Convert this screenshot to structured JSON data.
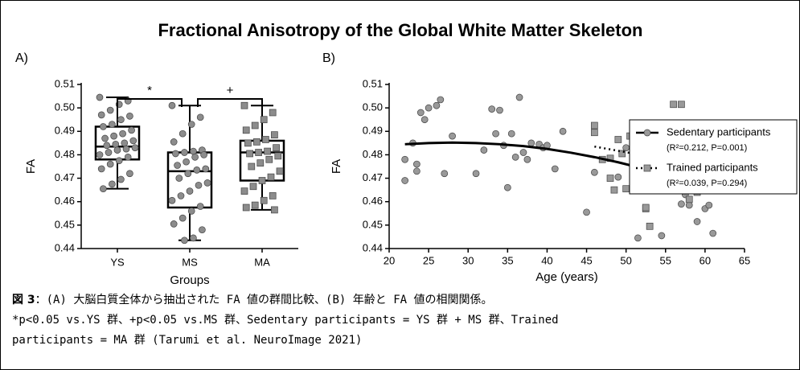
{
  "title": "Fractional Anisotropy of the Global White Matter Skeleton",
  "chart_data": [
    {
      "type": "box",
      "panel": "A)",
      "x_label": "Groups",
      "y_label": "FA",
      "categories": [
        "YS",
        "MS",
        "MA"
      ],
      "ylim": [
        0.44,
        0.51
      ],
      "yticks": [
        0.44,
        0.45,
        0.46,
        0.47,
        0.48,
        0.49,
        {
          "value": 0.5,
          "label": "0.50"
        },
        0.51
      ],
      "annotations": [
        "*",
        "+"
      ],
      "point_color": "#8c8c8c",
      "boxes": [
        {
          "min": 0.4655,
          "q1": 0.478,
          "median": 0.4835,
          "q3": 0.492,
          "max": 0.5045
        },
        {
          "min": 0.4435,
          "q1": 0.4575,
          "median": 0.473,
          "q3": 0.481,
          "max": 0.501
        },
        {
          "min": 0.4565,
          "q1": 0.469,
          "median": 0.481,
          "q3": 0.486,
          "max": 0.501
        }
      ],
      "points": [
        [
          0.5045,
          0.503,
          0.5015,
          0.499,
          0.497,
          0.4965,
          0.495,
          0.493,
          0.492,
          0.4905,
          0.489,
          0.488,
          0.487,
          0.486,
          0.485,
          0.4845,
          0.484,
          0.483,
          0.4825,
          0.482,
          0.481,
          0.48,
          0.479,
          0.4775,
          0.476,
          0.474,
          0.472,
          0.4695,
          0.4675,
          0.4655
        ],
        [
          0.501,
          0.496,
          0.493,
          0.489,
          0.4855,
          0.482,
          0.4815,
          0.481,
          0.4805,
          0.48,
          0.479,
          0.477,
          0.4755,
          0.474,
          0.4735,
          0.472,
          0.47,
          0.468,
          0.467,
          0.4645,
          0.4625,
          0.4605,
          0.458,
          0.456,
          0.453,
          0.4505,
          0.448,
          0.4445,
          0.4435
        ],
        [
          0.501,
          0.498,
          0.495,
          0.4925,
          0.4905,
          0.4885,
          0.4865,
          0.4855,
          0.485,
          0.483,
          0.4815,
          0.481,
          0.4805,
          0.4795,
          0.478,
          0.4765,
          0.475,
          0.473,
          0.4705,
          0.469,
          0.4665,
          0.4645,
          0.4625,
          0.4605,
          0.4585,
          0.4575,
          0.4565
        ]
      ]
    },
    {
      "type": "scatter",
      "panel": "B)",
      "x_label": "Age (years)",
      "y_label": "FA",
      "xlim": [
        20,
        65
      ],
      "xticks": [
        20,
        25,
        30,
        35,
        40,
        45,
        50,
        55,
        60,
        65
      ],
      "ylim": [
        0.44,
        0.51
      ],
      "yticks": [
        0.44,
        0.45,
        0.46,
        0.47,
        0.48,
        0.49,
        {
          "value": 0.5,
          "label": "0.50"
        },
        0.51
      ],
      "legend": "right",
      "series": [
        {
          "name": "Sedentary participants",
          "stat": "(R²=0.212, P=0.001)",
          "color": "#999999",
          "marker": "circle",
          "fit_style": "solid",
          "x": [
            22,
            22,
            23,
            23.5,
            23.5,
            24,
            24.5,
            25,
            26,
            26.5,
            27,
            28,
            31,
            32,
            33,
            33.5,
            34,
            34.5,
            35,
            35.5,
            36,
            36.5,
            37,
            37.5,
            38,
            39,
            39.5,
            40,
            41,
            42,
            45,
            46,
            49,
            50,
            51,
            51.5,
            52,
            52.5,
            53,
            54,
            54.5,
            55,
            55.5,
            56,
            56.5,
            57,
            57.5,
            58,
            59,
            60,
            60.5,
            61,
            61
          ],
          "values": [
            0.469,
            0.478,
            0.485,
            0.476,
            0.473,
            0.498,
            0.495,
            0.5,
            0.501,
            0.5035,
            0.472,
            0.488,
            0.472,
            0.482,
            0.4995,
            0.489,
            0.499,
            0.484,
            0.466,
            0.489,
            0.479,
            0.5045,
            0.481,
            0.478,
            0.485,
            0.4845,
            0.483,
            0.484,
            0.474,
            0.49,
            0.4555,
            0.4725,
            0.4705,
            0.483,
            0.467,
            0.4445,
            0.48,
            0.468,
            0.4815,
            0.471,
            0.4455,
            0.493,
            0.4905,
            0.484,
            0.4745,
            0.459,
            0.463,
            0.4585,
            0.4515,
            0.457,
            0.4585,
            0.4465,
            0.4675
          ],
          "fit": {
            "x": [
              22,
              25,
              28,
              31,
              34,
              37,
              40,
              43,
              46,
              49,
              52,
              55,
              58,
              61
            ],
            "values": [
              0.4845,
              0.485,
              0.4852,
              0.485,
              0.4845,
              0.4837,
              0.4825,
              0.4809,
              0.479,
              0.4768,
              0.4743,
              0.4713,
              0.4681,
              0.4645
            ]
          }
        },
        {
          "name": "Trained participants",
          "stat": "(R²=0.039, P=0.294)",
          "color": "#999999",
          "marker": "square",
          "fit_style": "dotted",
          "x": [
            46,
            46,
            47,
            48,
            48,
            48.5,
            49,
            49.5,
            50,
            50.5,
            51,
            51.5,
            52,
            52.5,
            52.5,
            53,
            53,
            53.5,
            54,
            54,
            54.5,
            55,
            55,
            55.5,
            56,
            56,
            56,
            56.5,
            57,
            57,
            57.5,
            58,
            58,
            59,
            61,
            61
          ],
          "values": [
            0.4925,
            0.4895,
            0.478,
            0.4785,
            0.47,
            0.465,
            0.4865,
            0.4805,
            0.4655,
            0.488,
            0.4795,
            0.48,
            0.4815,
            0.457,
            0.4575,
            0.473,
            0.4495,
            0.4815,
            0.4905,
            0.483,
            0.48,
            0.491,
            0.486,
            0.4835,
            0.5015,
            0.4815,
            0.475,
            0.483,
            0.5015,
            0.473,
            0.4665,
            0.461,
            0.479,
            0.464,
            0.4855,
            0.4745
          ],
          "fit": {
            "x": [
              46,
              61
            ],
            "values": [
              0.4835,
              0.4745
            ]
          }
        }
      ]
    }
  ],
  "caption": {
    "label": "図 3",
    "lines": [
      "：(A) 大脳白質全体から抽出された FA 値の群間比較、(B) 年齢と FA 値の相関関係。",
      "*p<0.05 vs.YS 群、+p<0.05 vs.MS 群、Sedentary participants = YS 群 + MS 群、Trained",
      "participants = MA 群 (Tarumi et al. NeuroImage 2021)"
    ]
  }
}
